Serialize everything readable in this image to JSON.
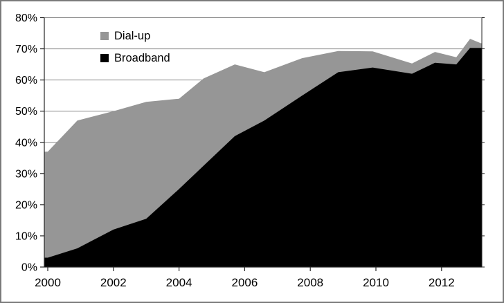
{
  "chart_data": {
    "type": "area",
    "stacked": true,
    "title": "",
    "grid": true,
    "legend_position": "top-center-left overlay",
    "ylim": [
      0,
      80
    ],
    "xlim": [
      2000,
      2013.2
    ],
    "y_axis": {
      "tick_format": "percent",
      "ticks": [
        {
          "v": 0,
          "label": "0%"
        },
        {
          "v": 10,
          "label": "10%"
        },
        {
          "v": 20,
          "label": "20%"
        },
        {
          "v": 30,
          "label": "30%"
        },
        {
          "v": 40,
          "label": "40%"
        },
        {
          "v": 50,
          "label": "50%"
        },
        {
          "v": 60,
          "label": "60%"
        },
        {
          "v": 70,
          "label": "70%"
        },
        {
          "v": 80,
          "label": "80%"
        }
      ]
    },
    "x_axis": {
      "ticks": [
        {
          "v": 2000,
          "label": "2000"
        },
        {
          "v": 2002,
          "label": "2002"
        },
        {
          "v": 2004,
          "label": "2004"
        },
        {
          "v": 2006,
          "label": "2006"
        },
        {
          "v": 2008,
          "label": "2008"
        },
        {
          "v": 2010,
          "label": "2010"
        },
        {
          "v": 2012,
          "label": "2012"
        }
      ]
    },
    "series": [
      {
        "name": "Dial-up",
        "color": "#969696",
        "key": "dialup"
      },
      {
        "name": "Broadband",
        "color": "#000000",
        "key": "broadband"
      }
    ],
    "points": [
      {
        "x": 2000.0,
        "broadband": 3,
        "dialup": 34
      },
      {
        "x": 2000.9,
        "broadband": 6,
        "dialup": 41
      },
      {
        "x": 2002.0,
        "broadband": 12,
        "dialup": 38
      },
      {
        "x": 2003.0,
        "broadband": 15.5,
        "dialup": 37.5
      },
      {
        "x": 2004.0,
        "broadband": 25,
        "dialup": 29
      },
      {
        "x": 2004.75,
        "broadband": 32.5,
        "dialup": 28
      },
      {
        "x": 2005.7,
        "broadband": 42,
        "dialup": 23
      },
      {
        "x": 2006.6,
        "broadband": 47,
        "dialup": 15.5
      },
      {
        "x": 2007.75,
        "broadband": 55,
        "dialup": 12
      },
      {
        "x": 2008.85,
        "broadband": 62.5,
        "dialup": 6.8
      },
      {
        "x": 2009.9,
        "broadband": 64,
        "dialup": 5.2
      },
      {
        "x": 2011.1,
        "broadband": 62,
        "dialup": 3.3
      },
      {
        "x": 2011.8,
        "broadband": 65.5,
        "dialup": 3.5
      },
      {
        "x": 2012.45,
        "broadband": 65,
        "dialup": 2.3
      },
      {
        "x": 2012.87,
        "broadband": 70.3,
        "dialup": 2.9
      },
      {
        "x": 2013.2,
        "broadband": 70.3,
        "dialup": 1.5
      }
    ],
    "colors": {
      "dialup": "#969696",
      "broadband": "#000000",
      "gridline": "#8c8c8c",
      "axis": "#262626",
      "figure_border": "#7a7a7a",
      "background": "#ffffff"
    }
  },
  "legend": {
    "items": [
      {
        "label": "Dial-up"
      },
      {
        "label": "Broadband"
      }
    ]
  }
}
